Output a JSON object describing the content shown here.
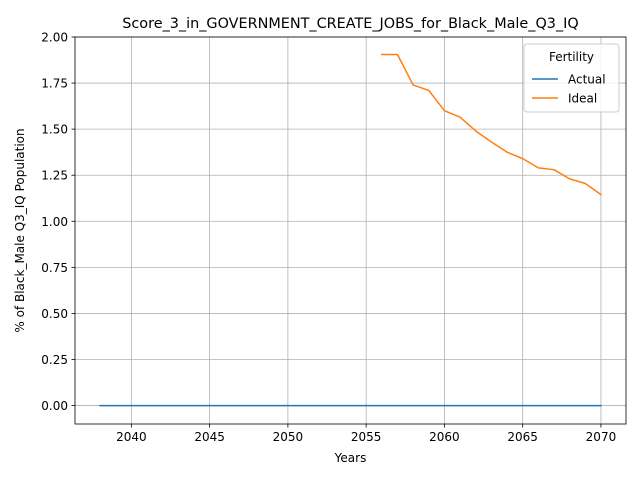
{
  "chart_data": {
    "type": "line",
    "title": "Score_3_in_GOVERNMENT_CREATE_JOBS_for_Black_Male_Q3_IQ",
    "xlabel": "Years",
    "ylabel": "% of Black_Male Q3_IQ Population",
    "xlim": [
      2036.4,
      2071.6
    ],
    "ylim": [
      -0.1,
      2.0
    ],
    "xticks": [
      2040,
      2045,
      2050,
      2055,
      2060,
      2065,
      2070
    ],
    "yticks": [
      0.0,
      0.25,
      0.5,
      0.75,
      1.0,
      1.25,
      1.5,
      1.75,
      2.0
    ],
    "xtick_labels": [
      "2040",
      "2045",
      "2050",
      "2055",
      "2060",
      "2065",
      "2070"
    ],
    "ytick_labels": [
      "0.00",
      "0.25",
      "0.50",
      "0.75",
      "1.00",
      "1.25",
      "1.50",
      "1.75",
      "2.00"
    ],
    "grid": true,
    "legend": {
      "title": "Fertility",
      "placement": "top-right"
    },
    "series": [
      {
        "name": "Actual",
        "color": "#1f77b4",
        "x": [
          2038,
          2039,
          2040,
          2041,
          2042,
          2043,
          2044,
          2045,
          2046,
          2047,
          2048,
          2049,
          2050,
          2051,
          2052,
          2053,
          2054,
          2055,
          2056,
          2057,
          2058,
          2059,
          2060,
          2061,
          2062,
          2063,
          2064,
          2065,
          2066,
          2067,
          2068,
          2069,
          2070
        ],
        "y": [
          0,
          0,
          0,
          0,
          0,
          0,
          0,
          0,
          0,
          0,
          0,
          0,
          0,
          0,
          0,
          0,
          0,
          0,
          0,
          0,
          0,
          0,
          0,
          0,
          0,
          0,
          0,
          0,
          0,
          0,
          0,
          0,
          0
        ]
      },
      {
        "name": "Ideal",
        "color": "#ff7f0e",
        "x": [
          2056,
          2057,
          2058,
          2059,
          2060,
          2061,
          2062,
          2063,
          2064,
          2065,
          2066,
          2067,
          2068,
          2069,
          2070
        ],
        "y": [
          1.905,
          1.905,
          1.74,
          1.71,
          1.6,
          1.565,
          1.49,
          1.43,
          1.375,
          1.34,
          1.29,
          1.28,
          1.23,
          1.205,
          1.145
        ]
      }
    ]
  }
}
